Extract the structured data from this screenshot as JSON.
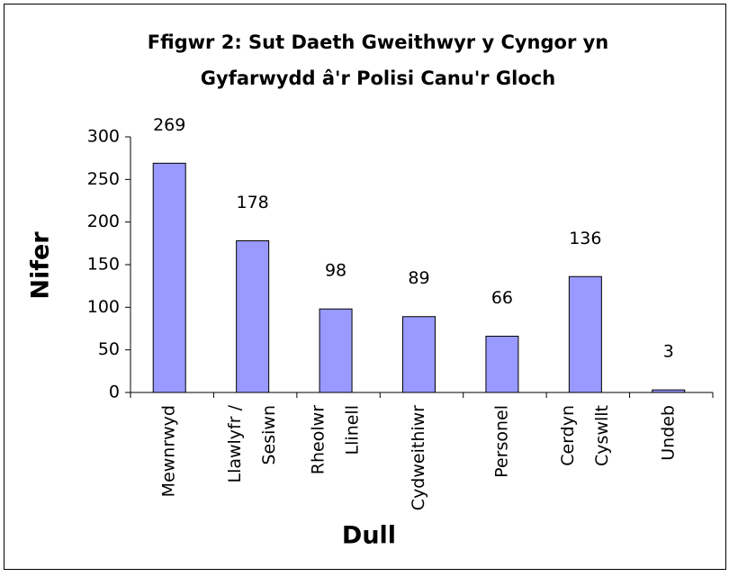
{
  "chart_data": {
    "type": "bar",
    "title": [
      "Ffigwr 2: Sut Daeth Gweithwyr y Cyngor yn",
      "Gyfarwydd â'r Polisi Canu'r Gloch"
    ],
    "x_label": "Dull",
    "y_label": "Nifer",
    "categories": [
      [
        "Mewnrwyd"
      ],
      [
        "Llawlyfr /",
        "Sesiwn"
      ],
      [
        "Rheolwr",
        "Llinell"
      ],
      [
        "Cydweithiwr"
      ],
      [
        "Personel"
      ],
      [
        "Cerdyn",
        "Cyswllt"
      ],
      [
        "Undeb"
      ]
    ],
    "values": [
      269,
      178,
      98,
      89,
      66,
      136,
      3
    ],
    "color": "#9999ff",
    "ylim": [
      0,
      300
    ],
    "yticks": [
      0,
      50,
      100,
      150,
      200,
      250,
      300
    ],
    "grid": false
  }
}
